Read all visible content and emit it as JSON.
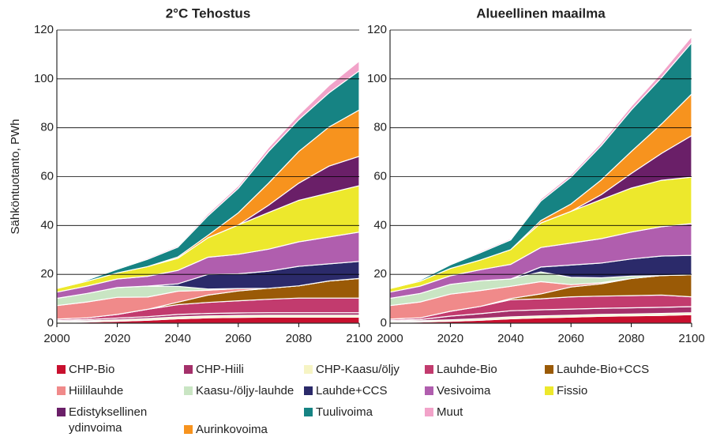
{
  "chart_data": [
    {
      "type": "area",
      "title": "2°C Tehostus",
      "ylabel": "Sähköntuotanto, PWh",
      "x": [
        2000,
        2010,
        2020,
        2030,
        2040,
        2050,
        2060,
        2070,
        2080,
        2090,
        2100
      ],
      "xlim": [
        2000,
        2100
      ],
      "xticks": [
        2000,
        2020,
        2040,
        2060,
        2080,
        2100
      ],
      "ylim": [
        0,
        120
      ],
      "yticks": [
        0,
        20,
        40,
        60,
        80,
        100,
        120
      ],
      "grid": true,
      "series": [
        {
          "name": "CHP-Bio",
          "color": "#c8102e",
          "values": [
            0.3,
            0.5,
            0.8,
            1.2,
            1.8,
            2.2,
            2.4,
            2.5,
            2.5,
            2.5,
            2.5
          ]
        },
        {
          "name": "CHP-Hiili",
          "color": "#a4306a",
          "values": [
            0.4,
            0.5,
            0.7,
            0.8,
            1.0,
            1.0,
            1.0,
            1.0,
            1.0,
            1.0,
            1.0
          ]
        },
        {
          "name": "CHP-Kaasu/öljy",
          "color": "#f6f4c4",
          "values": [
            0.5,
            0.5,
            0.6,
            0.7,
            0.8,
            0.8,
            0.8,
            0.8,
            0.8,
            0.8,
            0.8
          ]
        },
        {
          "name": "Lauhde-Bio",
          "color": "#c23b6e",
          "values": [
            0.5,
            0.7,
            1.5,
            3,
            4,
            4.5,
            5,
            5.5,
            6,
            6,
            6
          ]
        },
        {
          "name": "Lauhde-Bio+CCS",
          "color": "#9a5a06",
          "values": [
            0,
            0,
            0,
            0,
            1,
            3,
            4,
            4.5,
            5,
            7,
            8
          ]
        },
        {
          "name": "Hiililauhde",
          "color": "#f08a8a",
          "values": [
            5.5,
            6.5,
            7,
            5,
            4.5,
            2,
            1,
            0,
            0,
            0,
            0
          ]
        },
        {
          "name": "Kaasu-/öljy-lauhde",
          "color": "#c9e5c3",
          "values": [
            3,
            3.5,
            4,
            4.5,
            2,
            0.5,
            0,
            0,
            0,
            0,
            0
          ]
        },
        {
          "name": "Lauhde+CCS",
          "color": "#2b2a6a",
          "values": [
            0,
            0,
            0,
            0,
            1,
            6,
            6,
            7,
            8,
            7,
            7
          ]
        },
        {
          "name": "Vesivoima",
          "color": "#b05eae",
          "values": [
            2.5,
            3,
            3.5,
            4,
            5.5,
            7,
            8,
            9,
            10,
            11,
            12
          ]
        },
        {
          "name": "Fissio",
          "color": "#ede82c",
          "values": [
            1.5,
            2,
            2.5,
            4,
            5,
            8,
            12,
            15,
            17,
            18,
            19
          ]
        },
        {
          "name": "Edistyksellinen ydinvoima",
          "color": "#6a1f68",
          "values": [
            0,
            0,
            0,
            0,
            0,
            0,
            0,
            3,
            7,
            11,
            12
          ]
        },
        {
          "name": "Tuulivoima",
          "color": "#168383",
          "values": [
            0,
            0.5,
            1.5,
            3,
            4,
            8,
            10,
            13,
            13,
            14,
            16
          ]
        },
        {
          "name": "Muut",
          "color": "#f2a3c9",
          "values": [
            0.3,
            0.3,
            0.3,
            0.5,
            0.5,
            0.8,
            1,
            1.5,
            2,
            3,
            4
          ]
        },
        {
          "name": "Aurinkovoima",
          "color": "#f7931e",
          "values": [
            0,
            0,
            0,
            0,
            0.5,
            1,
            5,
            9,
            13,
            16,
            19
          ]
        }
      ]
    },
    {
      "type": "area",
      "title": "Alueellinen maailma",
      "x": [
        2000,
        2010,
        2020,
        2030,
        2040,
        2050,
        2060,
        2070,
        2080,
        2090,
        2100
      ],
      "xlim": [
        2000,
        2100
      ],
      "xticks": [
        2000,
        2020,
        2040,
        2060,
        2080,
        2100
      ],
      "ylim": [
        0,
        120
      ],
      "yticks": [
        0,
        20,
        40,
        60,
        80,
        100,
        120
      ],
      "grid": true,
      "series": [
        {
          "color": "#c8102e",
          "values": [
            0.3,
            0.5,
            0.8,
            1.2,
            1.8,
            2.2,
            2.5,
            2.8,
            3,
            3.2,
            3.5
          ]
        },
        {
          "color": "#a4306a",
          "values": [
            0.4,
            0.5,
            1.5,
            2,
            2.5,
            2.5,
            2.5,
            2.5,
            2.5,
            2.5,
            2.5
          ]
        },
        {
          "color": "#f6f4c4",
          "values": [
            0.5,
            0.5,
            0.6,
            0.7,
            0.8,
            0.8,
            0.8,
            0.8,
            0.8,
            0.8,
            0.8
          ]
        },
        {
          "color": "#c23b6e",
          "values": [
            0.5,
            0.7,
            2,
            3,
            4.5,
            4.5,
            5,
            5,
            5,
            5,
            4
          ]
        },
        {
          "color": "#9a5a06",
          "values": [
            0,
            0,
            0,
            0,
            0.5,
            2,
            4,
            5,
            7,
            8,
            9
          ]
        },
        {
          "color": "#f08a8a",
          "values": [
            5.5,
            6.5,
            7,
            6.5,
            5,
            5,
            1,
            0.5,
            0,
            0,
            0
          ]
        },
        {
          "color": "#c9e5c3",
          "values": [
            3,
            3.5,
            4,
            4,
            3,
            4,
            3,
            2,
            1,
            0,
            0
          ]
        },
        {
          "color": "#2b2a6a",
          "values": [
            0,
            0,
            0,
            0,
            0,
            2,
            5,
            6,
            7,
            8,
            8
          ]
        },
        {
          "color": "#b05eae",
          "values": [
            2.5,
            3,
            3.5,
            4.5,
            6,
            8,
            9,
            10,
            11,
            12,
            13
          ]
        },
        {
          "color": "#ede82c",
          "values": [
            1.5,
            2,
            3,
            4,
            6,
            10,
            13,
            16,
            18,
            19,
            19
          ]
        },
        {
          "color": "#6a1f68",
          "values": [
            0,
            0,
            0,
            0,
            0,
            0,
            0,
            2,
            6,
            11,
            17
          ]
        },
        {
          "color": "#168383",
          "values": [
            0,
            0.5,
            1.5,
            3,
            4,
            8,
            11,
            14,
            17,
            19,
            21
          ]
        },
        {
          "color": "#f2a3c9",
          "values": [
            0.3,
            0.3,
            0.3,
            0.5,
            0.5,
            0.8,
            1,
            1.2,
            1.5,
            2,
            2.5
          ]
        },
        {
          "color": "#f7931e",
          "values": [
            0,
            0,
            0,
            0,
            0,
            1,
            3,
            6,
            9,
            12,
            17
          ]
        }
      ]
    }
  ]
}
